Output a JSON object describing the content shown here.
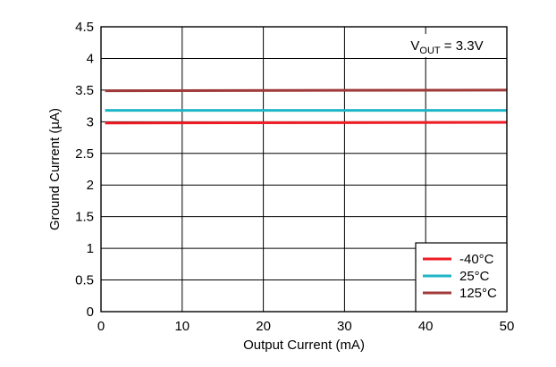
{
  "chart_data": {
    "type": "line",
    "title": "",
    "xlabel": "Output Current (mA)",
    "ylabel": "Ground Current (µA)",
    "xlim": [
      0,
      50
    ],
    "ylim": [
      0,
      4.5
    ],
    "x_ticks": [
      0,
      10,
      20,
      30,
      40,
      50
    ],
    "x_tick_labels": [
      "0",
      "10",
      "20",
      "30",
      "40",
      "50"
    ],
    "y_ticks": [
      0,
      0.5,
      1,
      1.5,
      2,
      2.5,
      3,
      3.5,
      4,
      4.5
    ],
    "y_tick_labels": [
      "0",
      "0.5",
      "1",
      "1.5",
      "2",
      "2.5",
      "3",
      "3.5",
      "4",
      "4.5"
    ],
    "grid": true,
    "legend_position": "bottom-right",
    "annotation": {
      "prefix": "V",
      "subscript": "OUT",
      "suffix": " = 3.3V",
      "position": "top-right"
    },
    "series": [
      {
        "name": "-40°C",
        "color": "#ee1c24",
        "x": [
          0.5,
          50
        ],
        "y": [
          2.98,
          2.99
        ]
      },
      {
        "name": "25°C",
        "color": "#1fb6c9",
        "x": [
          0.5,
          50
        ],
        "y": [
          3.18,
          3.18
        ]
      },
      {
        "name": "125°C",
        "color": "#a0393a",
        "x": [
          0.5,
          50
        ],
        "y": [
          3.49,
          3.5
        ]
      }
    ]
  }
}
